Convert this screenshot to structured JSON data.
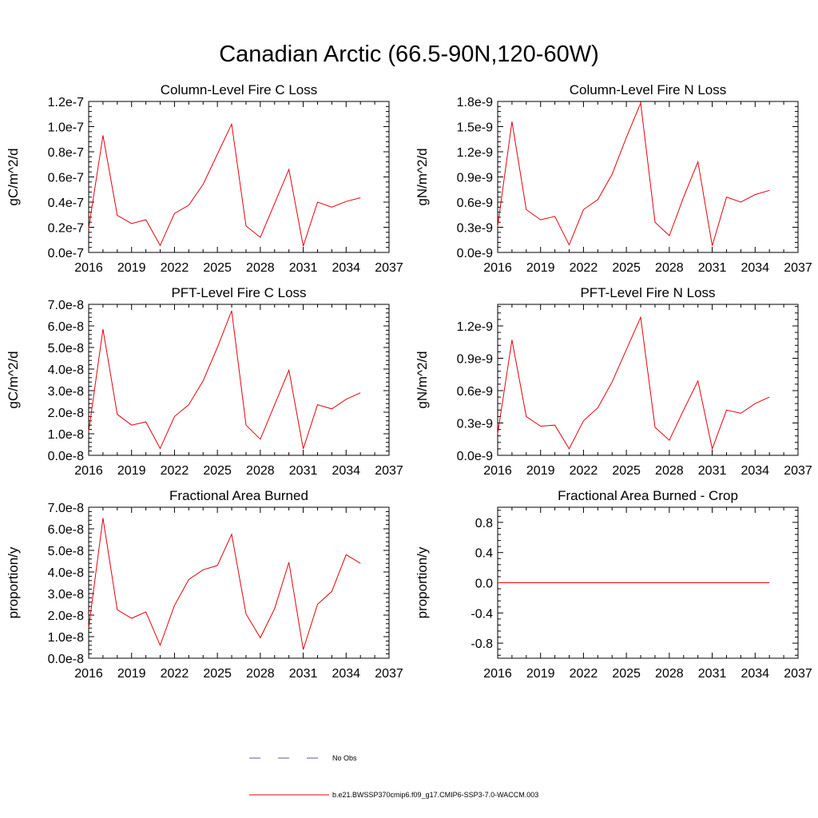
{
  "figure": {
    "title": "Canadian Arctic (66.5-90N,120-60W)",
    "line_color": "#e8000b",
    "obs_color": "#5a5aa8"
  },
  "legend": {
    "entries": [
      {
        "label": "No Obs",
        "style": "dashed",
        "color": "#5a5aa8"
      },
      {
        "label": "b.e21.BWSSP370cmip6.f09_g17.CMIP6-SSP3-7.0-WACCM.003",
        "style": "solid",
        "color": "#e8000b"
      }
    ]
  },
  "chart_data": [
    {
      "type": "line",
      "title": "Column-Level Fire C Loss",
      "ylabel": "gC/m^2/d",
      "xlim": [
        2016,
        2037
      ],
      "xticks": [
        "2016",
        "2019",
        "2022",
        "2025",
        "2028",
        "2031",
        "2034",
        "2037"
      ],
      "ylim": [
        0,
        1.2e-07
      ],
      "yticks": [
        0,
        2e-08,
        4e-08,
        6e-08,
        8e-08,
        1e-07,
        1.2e-07
      ],
      "ytick_labels": [
        "0.0e-7",
        "0.2e-7",
        "0.4e-7",
        "0.6e-7",
        "0.8e-7",
        "1.0e-7",
        "1.2e-7"
      ],
      "x": [
        2016,
        2017,
        2018,
        2019,
        2020,
        2021,
        2022,
        2023,
        2024,
        2025,
        2026,
        2027,
        2028,
        2029,
        2030,
        2031,
        2032,
        2033,
        2034,
        2035
      ],
      "values": [
        1.9e-08,
        9.3e-08,
        2.95e-08,
        2.3e-08,
        2.6e-08,
        5.5e-09,
        3.1e-08,
        3.75e-08,
        5.4e-08,
        7.8e-08,
        1.02e-07,
        2.1e-08,
        1.2e-08,
        3.9e-08,
        6.6e-08,
        5e-09,
        4e-08,
        3.6e-08,
        4.05e-08,
        4.35e-08
      ]
    },
    {
      "type": "line",
      "title": "Column-Level Fire N Loss",
      "ylabel": "gN/m^2/d",
      "xlim": [
        2016,
        2037
      ],
      "xticks": [
        "2016",
        "2019",
        "2022",
        "2025",
        "2028",
        "2031",
        "2034",
        "2037"
      ],
      "ylim": [
        0,
        1.8e-09
      ],
      "yticks": [
        0,
        3e-10,
        6e-10,
        9e-10,
        1.2e-09,
        1.5e-09,
        1.8e-09
      ],
      "ytick_labels": [
        "0.0e-9",
        "0.3e-9",
        "0.6e-9",
        "0.9e-9",
        "1.2e-9",
        "1.5e-9",
        "1.8e-9"
      ],
      "x": [
        2016,
        2017,
        2018,
        2019,
        2020,
        2021,
        2022,
        2023,
        2024,
        2025,
        2026,
        2027,
        2028,
        2029,
        2030,
        2031,
        2032,
        2033,
        2034,
        2035
      ],
      "values": [
        3.1e-10,
        1.56e-09,
        5.1e-10,
        3.9e-10,
        4.3e-10,
        9e-11,
        5.1e-10,
        6.3e-10,
        9.3e-10,
        1.37e-09,
        1.78e-09,
        3.6e-10,
        2e-10,
        6.6e-10,
        1.08e-09,
        8e-11,
        6.6e-10,
        6e-10,
        6.9e-10,
        7.4e-10
      ]
    },
    {
      "type": "line",
      "title": "PFT-Level Fire C Loss",
      "ylabel": "gC/m^2/d",
      "xlim": [
        2016,
        2037
      ],
      "xticks": [
        "2016",
        "2019",
        "2022",
        "2025",
        "2028",
        "2031",
        "2034",
        "2037"
      ],
      "ylim": [
        0,
        7e-08
      ],
      "yticks": [
        0,
        1e-08,
        2e-08,
        3e-08,
        4e-08,
        5e-08,
        6e-08,
        7e-08
      ],
      "ytick_labels": [
        "0.0e-8",
        "1.0e-8",
        "2.0e-8",
        "3.0e-8",
        "4.0e-8",
        "5.0e-8",
        "6.0e-8",
        "7.0e-8"
      ],
      "x": [
        2016,
        2017,
        2018,
        2019,
        2020,
        2021,
        2022,
        2023,
        2024,
        2025,
        2026,
        2027,
        2028,
        2029,
        2030,
        2031,
        2032,
        2033,
        2034,
        2035
      ],
      "values": [
        1.1e-08,
        5.85e-08,
        1.9e-08,
        1.4e-08,
        1.55e-08,
        3.2e-09,
        1.8e-08,
        2.35e-08,
        3.45e-08,
        5e-08,
        6.7e-08,
        1.4e-08,
        7.5e-09,
        2.35e-08,
        3.95e-08,
        3e-09,
        2.35e-08,
        2.15e-08,
        2.6e-08,
        2.9e-08
      ]
    },
    {
      "type": "line",
      "title": "PFT-Level Fire N Loss",
      "ylabel": "gN/m^2/d",
      "xlim": [
        2016,
        2037
      ],
      "xticks": [
        "2016",
        "2019",
        "2022",
        "2025",
        "2028",
        "2031",
        "2034",
        "2037"
      ],
      "ylim": [
        0,
        1.4e-09
      ],
      "yticks": [
        0,
        3e-10,
        6e-10,
        9e-10,
        1.2e-09
      ],
      "ytick_labels": [
        "0.0e-9",
        "0.3e-9",
        "0.6e-9",
        "0.9e-9",
        "1.2e-9"
      ],
      "x": [
        2016,
        2017,
        2018,
        2019,
        2020,
        2021,
        2022,
        2023,
        2024,
        2025,
        2026,
        2027,
        2028,
        2029,
        2030,
        2031,
        2032,
        2033,
        2034,
        2035
      ],
      "values": [
        2e-10,
        1.07e-09,
        3.6e-10,
        2.7e-10,
        2.8e-10,
        6e-11,
        3.2e-10,
        4.4e-10,
        6.8e-10,
        9.8e-10,
        1.28e-09,
        2.6e-10,
        1.4e-10,
        4.2e-10,
        6.9e-10,
        6e-11,
        4.2e-10,
        3.9e-10,
        4.8e-10,
        5.4e-10
      ]
    },
    {
      "type": "line",
      "title": "Fractional Area Burned",
      "ylabel": "proportion/y",
      "xlim": [
        2016,
        2037
      ],
      "xticks": [
        "2016",
        "2019",
        "2022",
        "2025",
        "2028",
        "2031",
        "2034",
        "2037"
      ],
      "ylim": [
        0,
        7e-08
      ],
      "yticks": [
        0,
        1e-08,
        2e-08,
        3e-08,
        4e-08,
        5e-08,
        6e-08,
        7e-08
      ],
      "ytick_labels": [
        "0.0e-8",
        "1.0e-8",
        "2.0e-8",
        "3.0e-8",
        "4.0e-8",
        "5.0e-8",
        "6.0e-8",
        "7.0e-8"
      ],
      "x": [
        2016,
        2017,
        2018,
        2019,
        2020,
        2021,
        2022,
        2023,
        2024,
        2025,
        2026,
        2027,
        2028,
        2029,
        2030,
        2031,
        2032,
        2033,
        2034,
        2035
      ],
      "values": [
        1.4e-08,
        6.5e-08,
        2.25e-08,
        1.85e-08,
        2.15e-08,
        6e-09,
        2.45e-08,
        3.65e-08,
        4.1e-08,
        4.3e-08,
        5.75e-08,
        2.05e-08,
        9.5e-09,
        2.3e-08,
        4.45e-08,
        4e-09,
        2.5e-08,
        3.1e-08,
        4.8e-08,
        4.4e-08
      ]
    },
    {
      "type": "line",
      "title": "Fractional Area Burned - Crop",
      "ylabel": "proportion/y",
      "xlim": [
        2016,
        2037
      ],
      "xticks": [
        "2016",
        "2019",
        "2022",
        "2025",
        "2028",
        "2031",
        "2034",
        "2037"
      ],
      "ylim": [
        -1,
        1
      ],
      "yticks": [
        -0.8,
        -0.4,
        0,
        0.4,
        0.8
      ],
      "ytick_labels": [
        "-0.8",
        "-0.4",
        "0.0",
        "0.4",
        "0.8"
      ],
      "x": [
        2016,
        2017,
        2018,
        2019,
        2020,
        2021,
        2022,
        2023,
        2024,
        2025,
        2026,
        2027,
        2028,
        2029,
        2030,
        2031,
        2032,
        2033,
        2034,
        2035
      ],
      "values": [
        0,
        0,
        0,
        0,
        0,
        0,
        0,
        0,
        0,
        0,
        0,
        0,
        0,
        0,
        0,
        0,
        0,
        0,
        0,
        0
      ]
    }
  ]
}
